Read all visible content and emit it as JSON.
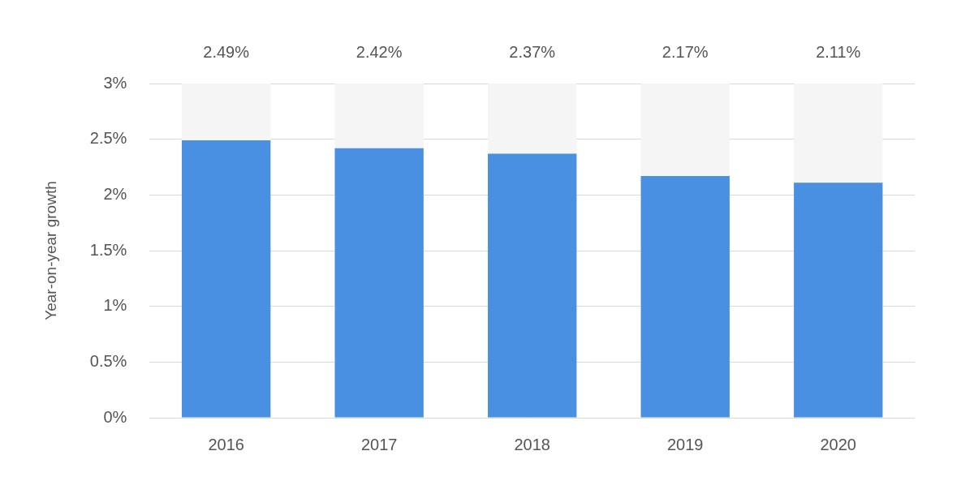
{
  "chart_data": {
    "type": "bar",
    "y_label": "Year-on-year growth",
    "categories": [
      "2016",
      "2017",
      "2018",
      "2019",
      "2020"
    ],
    "values": [
      2.49,
      2.42,
      2.37,
      2.17,
      2.11
    ],
    "value_labels": [
      "2.49%",
      "2.42%",
      "2.37%",
      "2.17%",
      "2.11%"
    ],
    "data_labels": true,
    "color": "#4a90e2",
    "ylim": [
      0,
      3
    ],
    "yticks": [
      {
        "value": 0,
        "label": "0%"
      },
      {
        "value": 0.5,
        "label": "0.5%"
      },
      {
        "value": 1,
        "label": "1%"
      },
      {
        "value": 1.5,
        "label": "1.5%"
      },
      {
        "value": 2,
        "label": "2%"
      },
      {
        "value": 2.5,
        "label": "2.5%"
      },
      {
        "value": 3,
        "label": "3%"
      }
    ],
    "grid": true
  }
}
